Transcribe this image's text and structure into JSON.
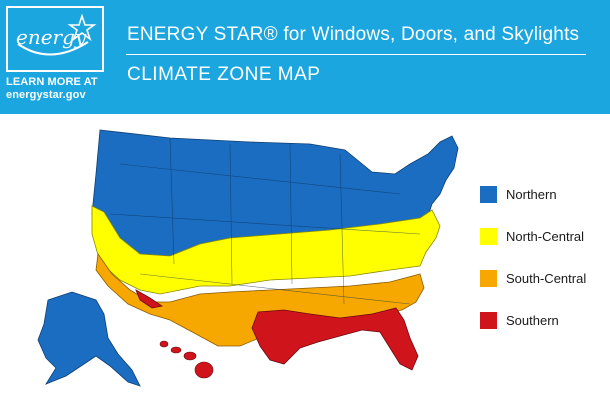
{
  "brand": {
    "logo_alt": "energy",
    "learn_more_line1": "LEARN MORE AT",
    "learn_more_line2": "energystar.gov"
  },
  "header": {
    "title": "ENERGY STAR® for Windows, Doors, and Skylights",
    "subtitle": "CLIMATE ZONE MAP",
    "background_color": "#1ba6df"
  },
  "legend": {
    "items": [
      {
        "label": "Northern",
        "color": "#1b6dc1"
      },
      {
        "label": "North-Central",
        "color": "#ffff00"
      },
      {
        "label": "South-Central",
        "color": "#f7a800"
      },
      {
        "label": "Southern",
        "color": "#d0141c"
      }
    ]
  },
  "map": {
    "zones": [
      "Northern",
      "North-Central",
      "South-Central",
      "Southern"
    ],
    "includes": [
      "Contiguous United States",
      "Alaska",
      "Hawaii"
    ]
  }
}
